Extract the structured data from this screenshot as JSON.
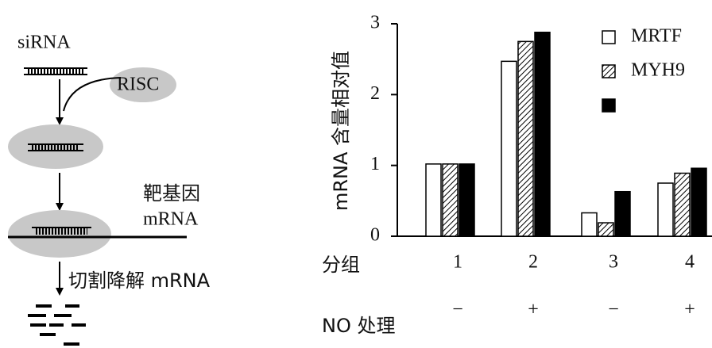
{
  "diagram": {
    "sirna": "siRNA",
    "risc": "RISC",
    "target_gene": "靶基因",
    "target_mrna": "mRNA",
    "cleavage": "切割降解 mRNA"
  },
  "chart_data": {
    "type": "bar",
    "y_label": "mRNA 含量相对值",
    "group_label": "分组",
    "categories": [
      "1",
      "2",
      "3",
      "4"
    ],
    "treatment_label": "NO 处理",
    "treatment_signs": [
      "−",
      "+",
      "−",
      "+"
    ],
    "ylim": [
      0,
      3
    ],
    "yticks": [
      0,
      1,
      2,
      3
    ],
    "series": [
      {
        "name": "MRTF",
        "color": "#ffffff",
        "hatch": false,
        "values": [
          1.02,
          2.47,
          0.33,
          0.75
        ]
      },
      {
        "name": "MYH9",
        "color": "#ffffff",
        "hatch": true,
        "values": [
          1.02,
          2.75,
          0.19,
          0.89
        ]
      },
      {
        "color": "#000000",
        "hatch": false,
        "values": [
          1.02,
          2.88,
          0.63,
          0.96
        ]
      }
    ]
  }
}
